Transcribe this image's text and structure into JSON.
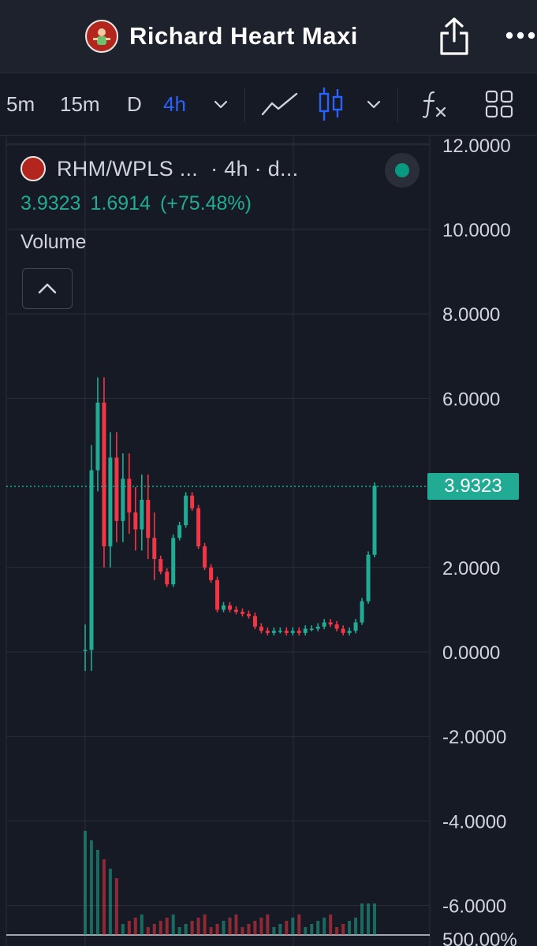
{
  "header": {
    "title": "Richard Heart Maxi",
    "avatar_icon": "richard-heart-avatar-icon",
    "share_icon": "share-icon",
    "more_icon": "more-dots-icon"
  },
  "toolbar": {
    "timeframes": [
      "5m",
      "15m",
      "D",
      "4h"
    ],
    "active_timeframe": "4h",
    "timeframe_dropdown_icon": "chevron-down-icon",
    "line_chart_icon": "line-chart-icon",
    "candle_icon": "candlestick-icon",
    "chart_type_dropdown_icon": "chevron-down-icon",
    "indicators_icon": "fx-icon",
    "layout_icon": "grid-layout-icon"
  },
  "legend": {
    "symbol": "RHM/WPLS ...",
    "interval_text": "· 4h · d...",
    "last": "3.9323",
    "change": "1.6914",
    "change_pct": "(+75.48%)",
    "status_dot_color": "#089981",
    "volume_label": "Volume",
    "collapse_icon": "chevron-up-icon"
  },
  "price_label": "3.9323",
  "colors": {
    "up": "#22ab94",
    "down": "#f23645",
    "background": "#161a25",
    "active": "#2962ff"
  },
  "chart_data": {
    "type": "candlestick",
    "y_ticks": [
      "12.0000",
      "10.0000",
      "8.0000",
      "6.0000",
      "2.0000",
      "0.0000",
      "-2.0000",
      "-4.0000",
      "-6.0000"
    ],
    "secondary_tick": "500.00%",
    "ylim": [
      -6.5,
      12
    ],
    "last_price": 3.9323,
    "approx_close_series": [
      0.05,
      4.3,
      5.9,
      2.5,
      4.6,
      3.1,
      4.1,
      3.3,
      2.9,
      3.6,
      2.7,
      2.2,
      1.9,
      1.6,
      2.7,
      3.0,
      3.7,
      3.4,
      2.5,
      2.0,
      1.7,
      1.0,
      1.1,
      1.0,
      0.95,
      0.9,
      0.85,
      0.6,
      0.5,
      0.45,
      0.5,
      0.5,
      0.45,
      0.5,
      0.45,
      0.55,
      0.55,
      0.6,
      0.7,
      0.65,
      0.55,
      0.45,
      0.5,
      0.7,
      1.2,
      2.3,
      3.9323
    ]
  }
}
